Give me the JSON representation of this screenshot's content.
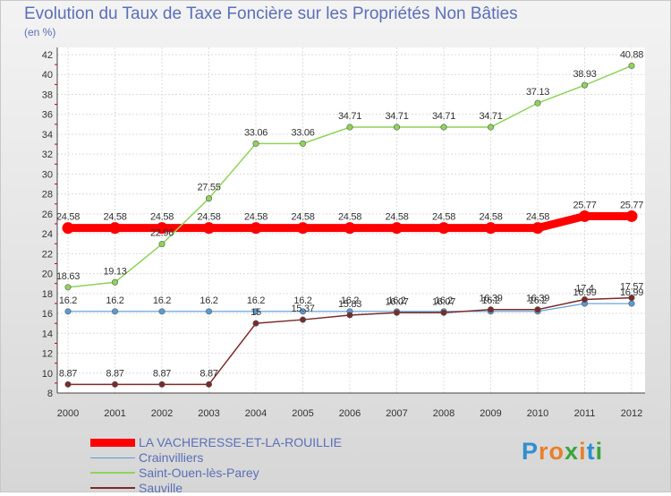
{
  "title": "Evolution du Taux de Taxe Foncière sur les Propriétés Non Bâties",
  "unit": "(en %)",
  "logo": {
    "text": "Proxiti",
    "colors": [
      "#2e8fd0",
      "#e8802a",
      "#e8802a",
      "#3aa53a",
      "#e8802a",
      "#2e8fd0",
      "#3aa53a"
    ]
  },
  "chart_data": {
    "type": "line",
    "title": "Evolution du Taux de Taxe Foncière sur les Propriétés Non Bâties",
    "ylabel": "(en %)",
    "xlabel": "",
    "ylim": [
      8,
      42
    ],
    "yticks": [
      8,
      10,
      12,
      14,
      16,
      18,
      20,
      22,
      24,
      26,
      28,
      30,
      32,
      34,
      36,
      38,
      40,
      42
    ],
    "grid": true,
    "categories": [
      "2000",
      "2001",
      "2002",
      "2003",
      "2004",
      "2005",
      "2006",
      "2007",
      "2008",
      "2009",
      "2010",
      "2011",
      "2012"
    ],
    "series": [
      {
        "name": "LA VACHERESSE-ET-LA-ROUILLIE",
        "color": "#ff0000",
        "width": 9,
        "values": [
          24.58,
          24.58,
          24.58,
          24.58,
          24.58,
          24.58,
          24.58,
          24.58,
          24.58,
          24.58,
          24.58,
          25.77,
          25.77
        ],
        "labels": [
          "24.58",
          "24.58",
          "24.58",
          "24.58",
          "24.58",
          "24.58",
          "24.58",
          "24.58",
          "24.58",
          "24.58",
          "24.58",
          "25.77",
          "25.77"
        ]
      },
      {
        "name": "Crainvilliers",
        "color": "#5b9bd5",
        "width": 1.2,
        "values": [
          16.2,
          16.2,
          16.2,
          16.2,
          16.2,
          16.2,
          16.2,
          16.2,
          16.2,
          16.2,
          16.2,
          16.99,
          16.99
        ],
        "labels": [
          "16.2",
          "16.2",
          "16.2",
          "16.2",
          "16.2",
          "16.2",
          "16.2",
          "16.2",
          "16.2",
          "16.2",
          "16.2",
          "16.99",
          "16.99"
        ]
      },
      {
        "name": "Saint-Ouen-lès-Parey",
        "color": "#8fd45a",
        "width": 1.5,
        "values": [
          18.63,
          19.13,
          22.96,
          27.55,
          33.06,
          33.06,
          34.71,
          34.71,
          34.71,
          34.71,
          37.13,
          38.93,
          40.88
        ],
        "labels": [
          "18.63",
          "19.13",
          "22.96",
          "27.55",
          "33.06",
          "33.06",
          "34.71",
          "34.71",
          "34.71",
          "34.71",
          "37.13",
          "38.93",
          "40.88"
        ]
      },
      {
        "name": "Sauville",
        "color": "#7b2a2a",
        "width": 1.5,
        "values": [
          8.87,
          8.87,
          8.87,
          8.87,
          15.0,
          15.37,
          15.83,
          16.07,
          16.07,
          16.39,
          16.39,
          17.4,
          17.57
        ],
        "labels": [
          "8.87",
          "8.87",
          "8.87",
          "8.87",
          "15",
          "15.37",
          "15.83",
          "16.07",
          "16.07",
          "16.39",
          "16.39",
          "17.4",
          "17.57"
        ]
      }
    ]
  }
}
